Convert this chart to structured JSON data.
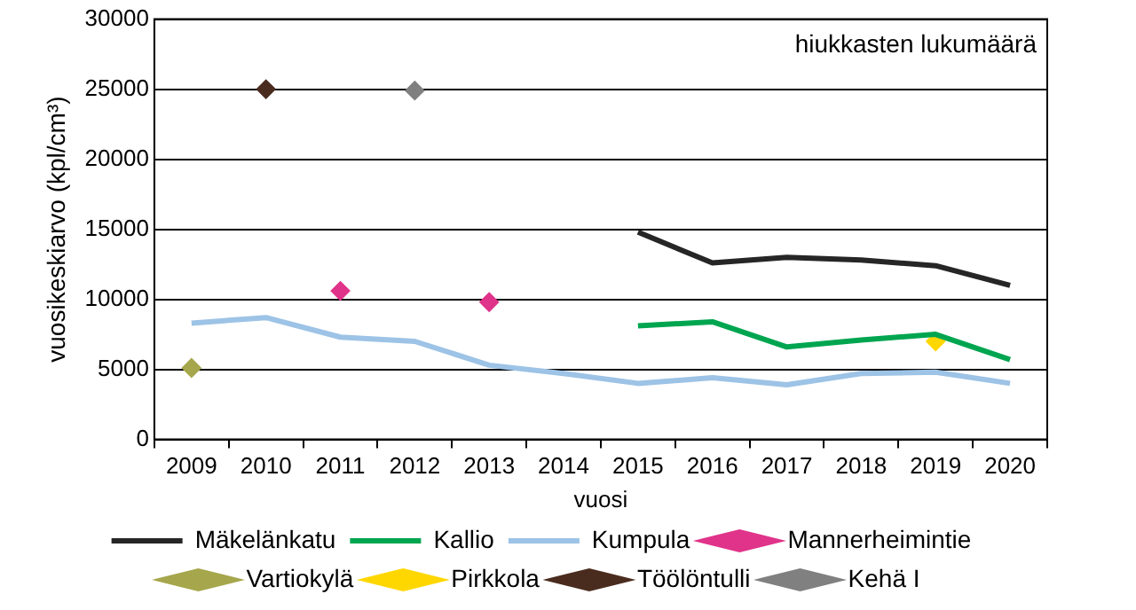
{
  "chart_data": {
    "type": "line",
    "ylabel": "vuosikeskiarvo (kpl/cm³)",
    "xlabel": "vuosi",
    "annotations": [
      "hiukkasten lukumäärä"
    ],
    "categories": [
      "2009",
      "2010",
      "2011",
      "2012",
      "2013",
      "2014",
      "2015",
      "2016",
      "2017",
      "2018",
      "2019",
      "2020"
    ],
    "ylim": [
      0,
      30000
    ],
    "yticks": [
      0,
      5000,
      10000,
      15000,
      20000,
      25000,
      30000
    ],
    "grid": "y",
    "legend": "bottom",
    "series": [
      {
        "name": "Mäkelänkatu",
        "color": "#262626",
        "marker": "none",
        "values": [
          null,
          null,
          null,
          null,
          null,
          null,
          14800,
          12600,
          13000,
          12800,
          12400,
          11000
        ]
      },
      {
        "name": "Kallio",
        "color": "#00a550",
        "marker": "none",
        "values": [
          null,
          null,
          null,
          null,
          null,
          null,
          8100,
          8400,
          6600,
          7100,
          7500,
          5700
        ]
      },
      {
        "name": "Kumpula",
        "color": "#9dc3e6",
        "marker": "none",
        "values": [
          8300,
          8700,
          7300,
          7000,
          5300,
          4700,
          4000,
          4400,
          3900,
          4700,
          4800,
          4000
        ]
      },
      {
        "name": "Mannerheimintie",
        "type": "scatter",
        "color": "#e0338a",
        "marker": "diamond",
        "values": [
          null,
          null,
          10600,
          null,
          9800,
          null,
          null,
          null,
          null,
          null,
          null,
          null
        ]
      },
      {
        "name": "Vartiokylä",
        "type": "scatter",
        "color": "#a6a64c",
        "marker": "diamond",
        "values": [
          5100,
          null,
          null,
          null,
          null,
          null,
          null,
          null,
          null,
          null,
          null,
          null
        ]
      },
      {
        "name": "Pirkkola",
        "type": "scatter",
        "color": "#ffd700",
        "marker": "diamond",
        "values": [
          null,
          null,
          null,
          null,
          null,
          null,
          null,
          null,
          null,
          null,
          7000,
          null
        ]
      },
      {
        "name": "Töölöntulli",
        "type": "scatter",
        "color": "#4a2c1f",
        "marker": "diamond",
        "values": [
          null,
          25000,
          null,
          null,
          null,
          null,
          null,
          null,
          null,
          null,
          null,
          null
        ]
      },
      {
        "name": "Kehä I",
        "type": "scatter",
        "color": "#808080",
        "marker": "diamond",
        "values": [
          null,
          null,
          null,
          24900,
          null,
          null,
          null,
          null,
          null,
          null,
          null,
          null
        ]
      }
    ]
  }
}
